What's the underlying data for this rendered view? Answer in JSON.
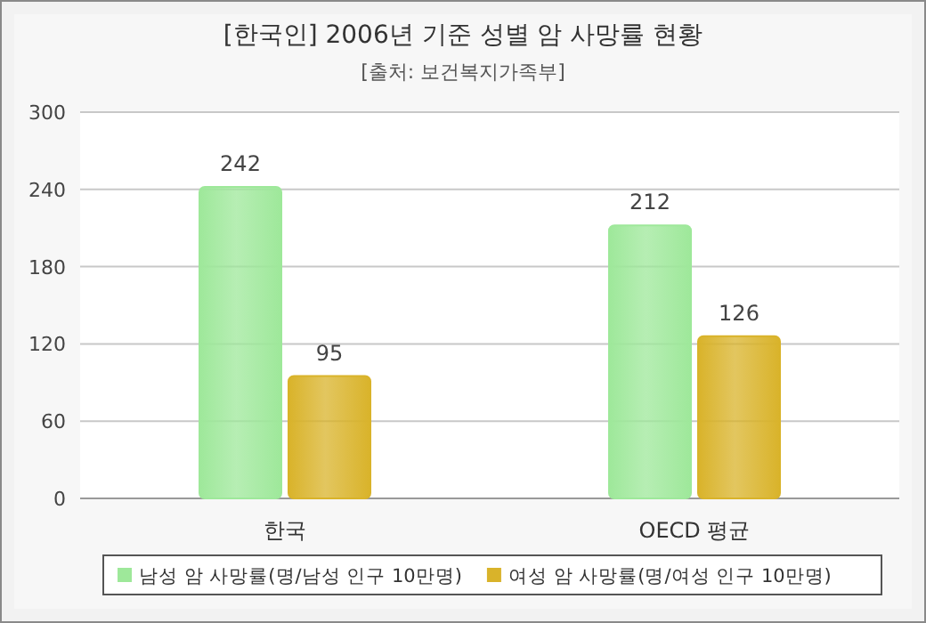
{
  "chart_data": {
    "type": "bar",
    "title": "[한국인] 2006년 기준 성별 암 사망률 현황",
    "subtitle": "[출처: 보건복지가족부]",
    "categories": [
      "한국",
      "OECD 평균"
    ],
    "series": [
      {
        "name": "남성 암 사망률(명/남성 인구 10만명)",
        "color": "#9ee89a",
        "values": [
          242,
          212
        ]
      },
      {
        "name": "여성 암 사망률(명/여성 인구 10만명)",
        "color": "#d9b32a",
        "values": [
          95,
          126
        ]
      }
    ],
    "ylim": [
      0,
      300
    ],
    "yticks": [
      0,
      60,
      120,
      180,
      240,
      300
    ],
    "grid": "y",
    "legend": "bottom",
    "data_labels": true
  }
}
